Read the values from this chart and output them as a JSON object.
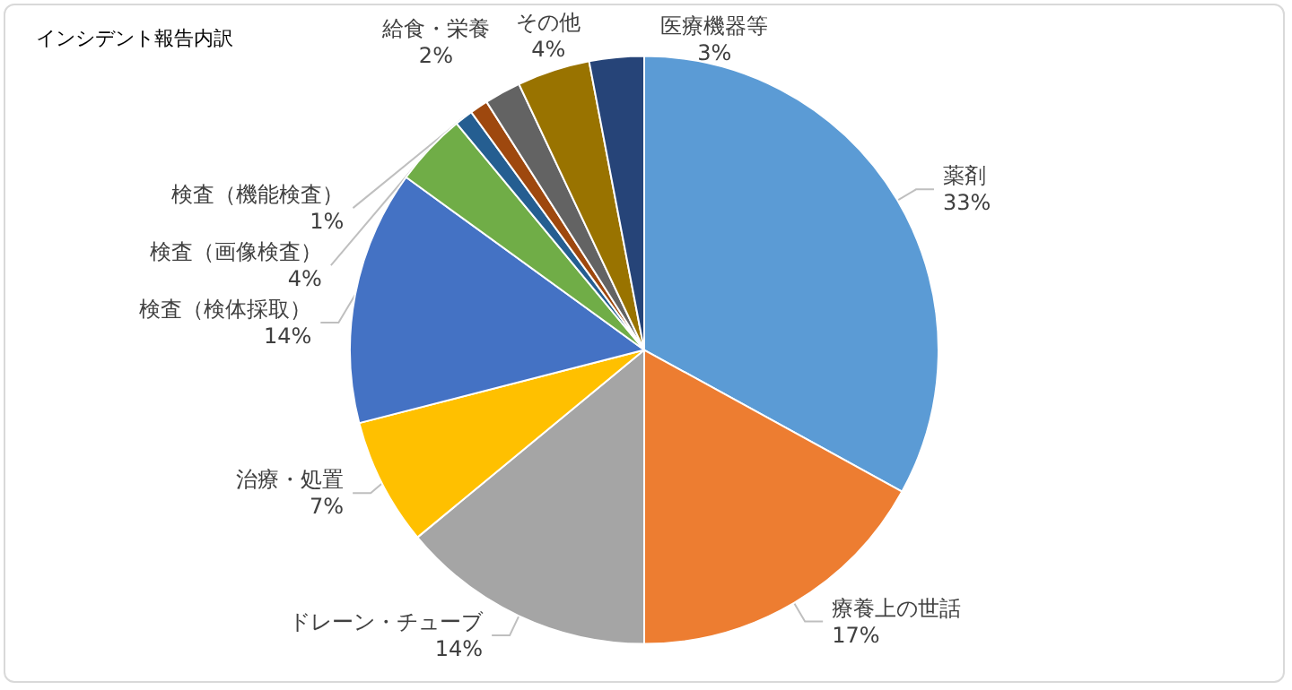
{
  "chart_data": {
    "type": "pie",
    "title": "インシデント報告内訳",
    "categories": [
      "薬剤",
      "療養上の世話",
      "ドレーン・チューブ",
      "治療・処置",
      "検査（検体採取）",
      "検査（画像検査）",
      "検査（機能検査）",
      null,
      "給食・栄養",
      "その他",
      "医療機器等"
    ],
    "values": [
      33,
      17,
      14,
      7,
      14,
      4,
      1,
      1,
      2,
      4,
      3
    ],
    "colors": [
      "#5b9bd5",
      "#ed7d31",
      "#a5a5a5",
      "#ffc000",
      "#4472c4",
      "#70ad47",
      "#255e91",
      "#9e480e",
      "#636363",
      "#997300",
      "#264478"
    ],
    "value_labels": [
      "33%",
      "17%",
      "14%",
      "7%",
      "14%",
      "4%",
      "1%",
      null,
      "2%",
      "4%",
      "3%"
    ],
    "legend": false
  }
}
